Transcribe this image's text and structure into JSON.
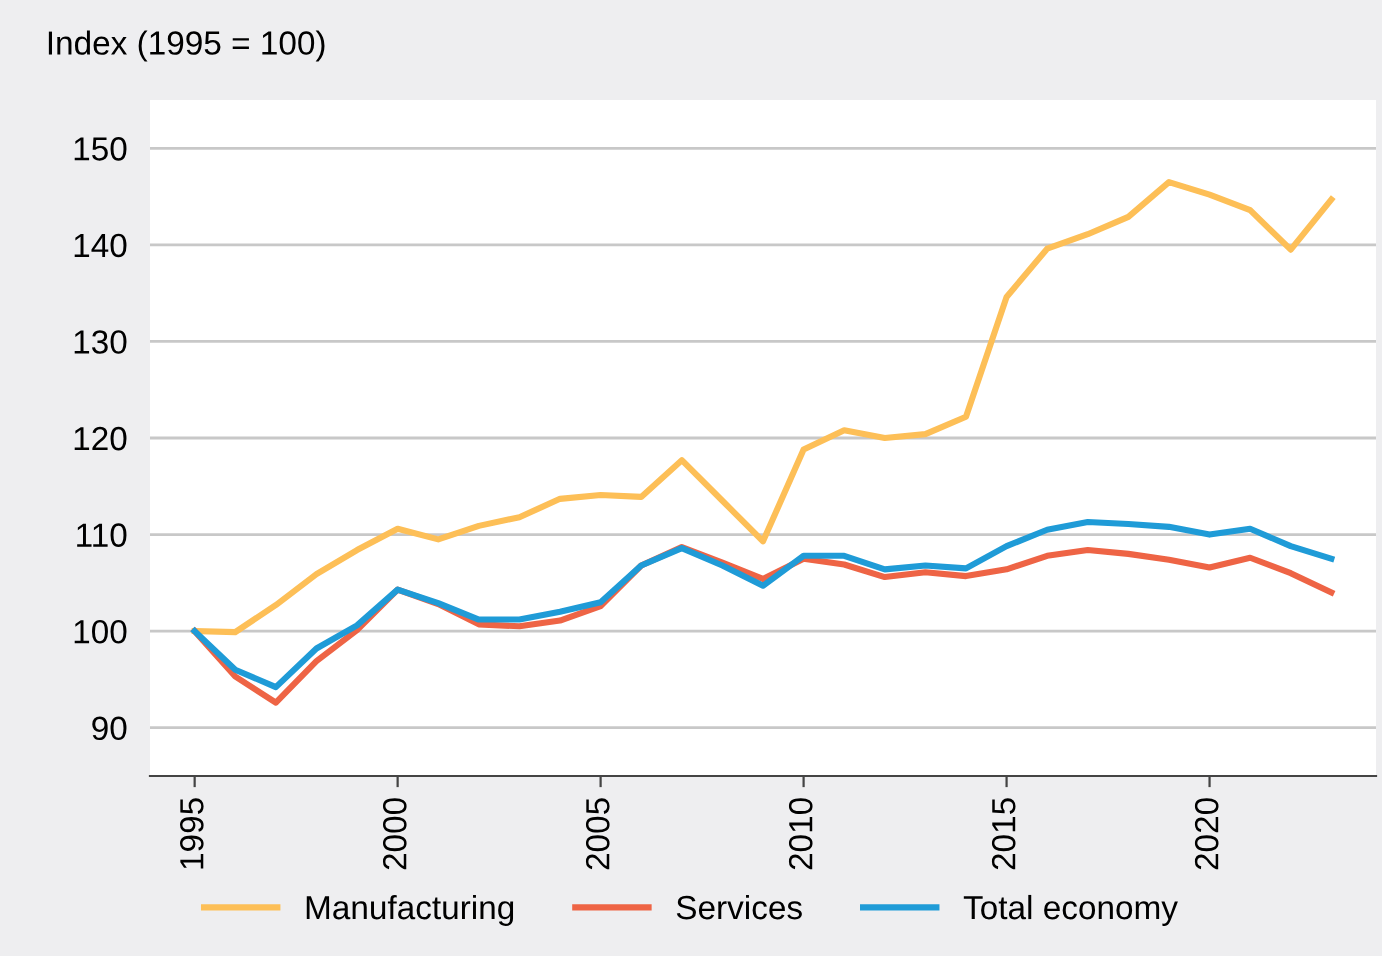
{
  "chart_data": {
    "type": "line",
    "ylabel": "Index (1995 = 100)",
    "x": [
      1995,
      1996,
      1997,
      1998,
      1999,
      2000,
      2001,
      2002,
      2003,
      2004,
      2005,
      2006,
      2007,
      2008,
      2009,
      2010,
      2011,
      2012,
      2013,
      2014,
      2015,
      2016,
      2017,
      2018,
      2019,
      2020,
      2021,
      2022,
      2023
    ],
    "series": [
      {
        "name": "Manufacturing",
        "color": "#fdbf57",
        "values": [
          100,
          99.9,
          102.7,
          105.9,
          108.4,
          110.6,
          109.5,
          110.9,
          111.8,
          113.7,
          114.1,
          113.9,
          117.7,
          113.5,
          109.3,
          118.8,
          120.8,
          120.0,
          120.4,
          122.2,
          134.6,
          139.6,
          141.1,
          142.9,
          146.5,
          145.2,
          143.6,
          139.5,
          144.7
        ]
      },
      {
        "name": "Services",
        "color": "#ee6445",
        "values": [
          100,
          95.3,
          92.6,
          96.9,
          100.1,
          104.3,
          102.8,
          100.7,
          100.5,
          101.1,
          102.6,
          106.8,
          108.7,
          107.1,
          105.4,
          107.5,
          106.9,
          105.6,
          106.1,
          105.7,
          106.4,
          107.8,
          108.4,
          108.0,
          107.4,
          106.6,
          107.6,
          106.0,
          104.0
        ]
      },
      {
        "name": "Total economy",
        "color": "#1f9bd7",
        "values": [
          100,
          96.0,
          94.2,
          98.2,
          100.6,
          104.3,
          102.9,
          101.2,
          101.2,
          102.0,
          103.0,
          106.8,
          108.6,
          106.8,
          104.7,
          107.8,
          107.8,
          106.4,
          106.8,
          106.5,
          108.8,
          110.5,
          111.3,
          111.1,
          110.8,
          110.0,
          110.6,
          108.8,
          107.5
        ]
      }
    ],
    "xlim": [
      1993.9,
      2024.1
    ],
    "xticks": [
      1995,
      2000,
      2005,
      2010,
      2015,
      2020
    ],
    "ylim": [
      85,
      155
    ],
    "yticks": [
      90,
      100,
      110,
      120,
      130,
      140,
      150
    ],
    "grid": "y",
    "legend": "bottom",
    "line_style": "solid",
    "marker": "none"
  }
}
